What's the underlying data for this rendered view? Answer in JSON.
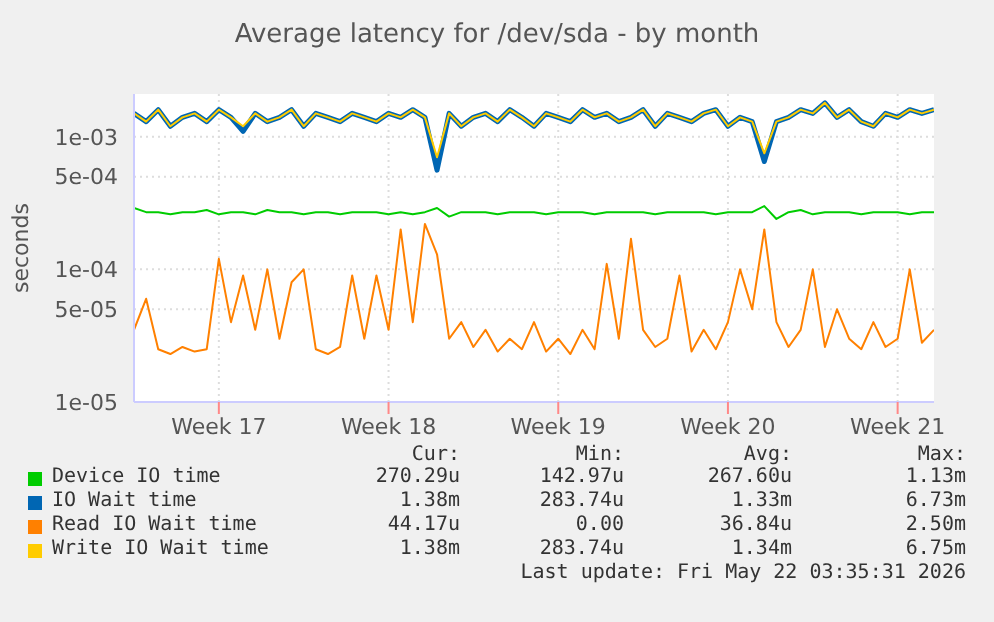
{
  "chart_data": {
    "type": "line",
    "title": "Average latency for /dev/sda - by month",
    "ylabel": "seconds",
    "categories": [
      null,
      null,
      null,
      null,
      null,
      null,
      null,
      "Week 17",
      null,
      null,
      null,
      null,
      null,
      null,
      null,
      null,
      null,
      null,
      null,
      null,
      null,
      "Week 18",
      null,
      null,
      null,
      null,
      null,
      null,
      null,
      null,
      null,
      null,
      null,
      null,
      null,
      "Week 19",
      null,
      null,
      null,
      null,
      null,
      null,
      null,
      null,
      null,
      null,
      null,
      null,
      null,
      "Week 20",
      null,
      null,
      null,
      null,
      null,
      null,
      null,
      null,
      null,
      null,
      null,
      null,
      null,
      "Week 21",
      null,
      null,
      null
    ],
    "series": [
      {
        "name": "Device IO time",
        "color": "#00cc00",
        "values": [
          0.00029,
          0.00027,
          0.00027,
          0.00026,
          0.00027,
          0.00027,
          0.00028,
          0.00026,
          0.00027,
          0.00027,
          0.00026,
          0.00028,
          0.00027,
          0.00027,
          0.00026,
          0.00027,
          0.00027,
          0.00026,
          0.00027,
          0.00027,
          0.00027,
          0.00026,
          0.00027,
          0.00026,
          0.00027,
          0.00029,
          0.00025,
          0.00027,
          0.00027,
          0.00027,
          0.00026,
          0.00027,
          0.00027,
          0.00027,
          0.00026,
          0.00027,
          0.00027,
          0.00027,
          0.00026,
          0.00027,
          0.00027,
          0.00027,
          0.00027,
          0.00026,
          0.00027,
          0.00027,
          0.00027,
          0.00027,
          0.00026,
          0.00027,
          0.00027,
          0.00027,
          0.0003,
          0.00024,
          0.00027,
          0.00028,
          0.00026,
          0.00027,
          0.00027,
          0.00027,
          0.00026,
          0.00027,
          0.00027,
          0.00027,
          0.00026,
          0.00027,
          0.00027
        ]
      },
      {
        "name": "IO Wait time",
        "color": "#0066b3",
        "values": [
          0.0015,
          0.0013,
          0.0016,
          0.0012,
          0.0014,
          0.0015,
          0.0013,
          0.0016,
          0.0014,
          0.0011,
          0.0015,
          0.0013,
          0.0014,
          0.0016,
          0.0012,
          0.0015,
          0.0014,
          0.0013,
          0.0015,
          0.0014,
          0.0013,
          0.0015,
          0.0014,
          0.0016,
          0.0014,
          0.00056,
          0.0015,
          0.0012,
          0.0014,
          0.0015,
          0.0013,
          0.0016,
          0.0014,
          0.0012,
          0.0015,
          0.0014,
          0.0013,
          0.0016,
          0.0014,
          0.0015,
          0.0013,
          0.0014,
          0.0016,
          0.0012,
          0.0015,
          0.0014,
          0.0013,
          0.0015,
          0.0016,
          0.0012,
          0.0014,
          0.0013,
          0.00065,
          0.0013,
          0.0014,
          0.0016,
          0.0015,
          0.0018,
          0.0014,
          0.0016,
          0.0013,
          0.0012,
          0.0015,
          0.0014,
          0.0016,
          0.0015,
          0.0016
        ]
      },
      {
        "name": "Read IO Wait time",
        "color": "#ff8000",
        "values": [
          3.5e-05,
          6e-05,
          2.5e-05,
          2.3e-05,
          2.6e-05,
          2.4e-05,
          2.5e-05,
          0.00012,
          4e-05,
          9e-05,
          3.5e-05,
          0.0001,
          3e-05,
          8e-05,
          0.0001,
          2.5e-05,
          2.3e-05,
          2.6e-05,
          9e-05,
          3e-05,
          9e-05,
          3.5e-05,
          0.0002,
          4e-05,
          0.00022,
          0.00013,
          3e-05,
          4e-05,
          2.6e-05,
          3.5e-05,
          2.4e-05,
          3e-05,
          2.5e-05,
          4e-05,
          2.4e-05,
          3e-05,
          2.3e-05,
          3.5e-05,
          2.5e-05,
          0.00011,
          3e-05,
          0.00017,
          3.5e-05,
          2.6e-05,
          3e-05,
          9e-05,
          2.4e-05,
          3.5e-05,
          2.5e-05,
          4e-05,
          0.0001,
          5e-05,
          0.0002,
          4e-05,
          2.6e-05,
          3.5e-05,
          0.0001,
          2.6e-05,
          5e-05,
          3e-05,
          2.5e-05,
          4e-05,
          2.6e-05,
          3e-05,
          0.0001,
          2.8e-05,
          3.5e-05
        ]
      },
      {
        "name": "Write IO Wait time",
        "color": "#ffcc00",
        "values": [
          0.0015,
          0.0013,
          0.0016,
          0.0012,
          0.0014,
          0.0015,
          0.0013,
          0.0016,
          0.0014,
          0.0012,
          0.0015,
          0.0013,
          0.0014,
          0.0016,
          0.0012,
          0.0015,
          0.0014,
          0.0013,
          0.0015,
          0.0014,
          0.0013,
          0.0015,
          0.0014,
          0.0016,
          0.0014,
          0.0007,
          0.0015,
          0.0012,
          0.0014,
          0.0015,
          0.0013,
          0.0016,
          0.0014,
          0.0012,
          0.0015,
          0.0014,
          0.0013,
          0.0016,
          0.0014,
          0.0015,
          0.0013,
          0.0014,
          0.0016,
          0.0012,
          0.0015,
          0.0014,
          0.0013,
          0.0015,
          0.0016,
          0.0012,
          0.0014,
          0.0013,
          0.00075,
          0.0013,
          0.0014,
          0.0016,
          0.0015,
          0.0018,
          0.0014,
          0.0016,
          0.0013,
          0.0012,
          0.0015,
          0.0014,
          0.0016,
          0.0015,
          0.0016
        ]
      }
    ],
    "log": "y",
    "ylim": [
      1e-05,
      0.0021
    ],
    "yticks": [
      {
        "value": 1e-05,
        "label": "1e-05"
      },
      {
        "value": 5e-05,
        "label": "5e-05"
      },
      {
        "value": 0.0001,
        "label": "1e-04"
      },
      {
        "value": 0.0005,
        "label": "5e-04"
      },
      {
        "value": 0.001,
        "label": "1e-03"
      }
    ],
    "grid": true,
    "legend": "bottom",
    "marker": "none",
    "line_style": "solid",
    "annotations": [
      "Cur:",
      "Min:",
      "Avg:",
      "Max:",
      "270.29u",
      "142.97u",
      "267.60u",
      "1.13m",
      "1.38m",
      "283.74u",
      "1.33m",
      "6.73m",
      "44.17u",
      "0.00",
      "36.84u",
      "2.50m",
      "1.38m",
      "283.74u",
      "1.34m",
      "6.75m",
      "Last update: Fri May 22 03:35:31 2026"
    ]
  }
}
